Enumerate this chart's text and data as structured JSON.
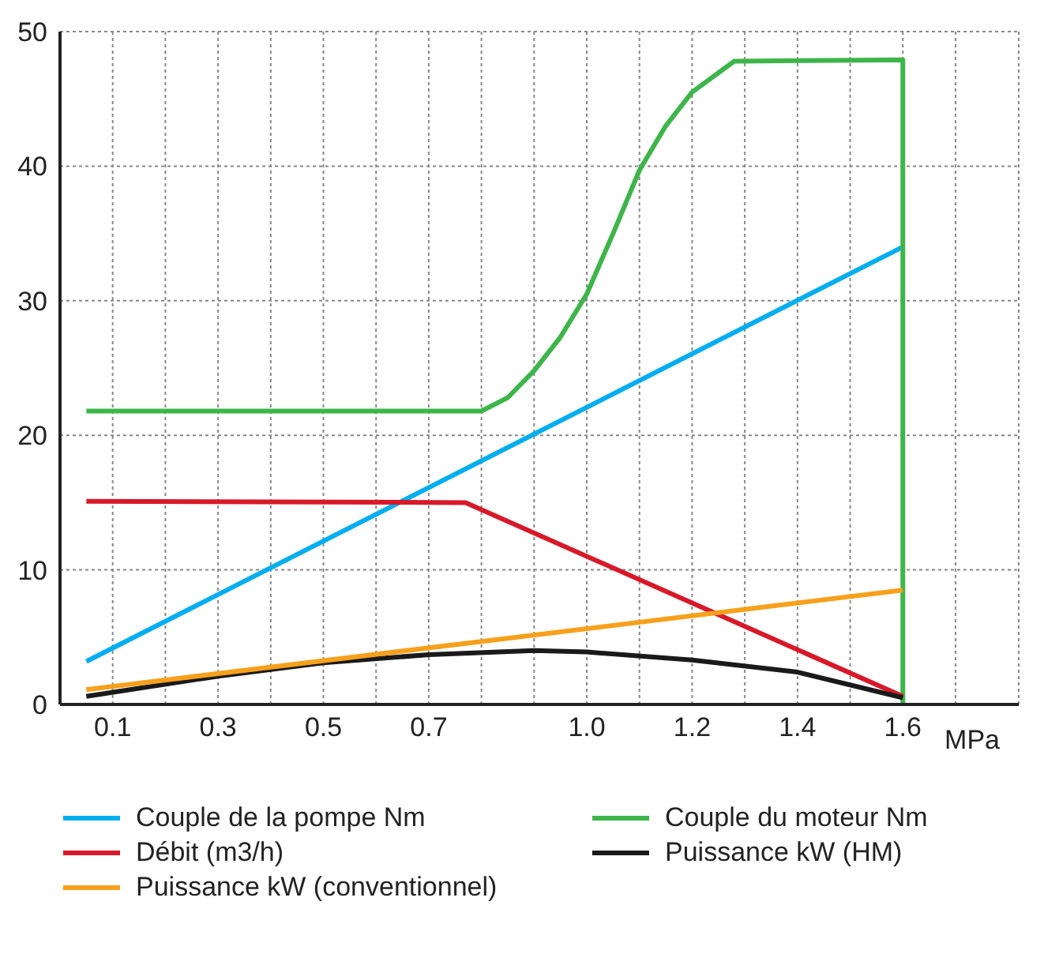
{
  "chart_data": {
    "type": "line",
    "xlabel": "MPa",
    "xlim": [
      0,
      1.82
    ],
    "xticks": [
      {
        "value": 0.1,
        "label": "0.1"
      },
      {
        "value": 0.2,
        "label": null
      },
      {
        "value": 0.3,
        "label": "0.3"
      },
      {
        "value": 0.4,
        "label": null
      },
      {
        "value": 0.5,
        "label": "0.5"
      },
      {
        "value": 0.6,
        "label": null
      },
      {
        "value": 0.7,
        "label": "0.7"
      },
      {
        "value": 0.8,
        "label": null
      },
      {
        "value": 0.9,
        "label": null
      },
      {
        "value": 1.0,
        "label": "1.0"
      },
      {
        "value": 1.1,
        "label": null
      },
      {
        "value": 1.2,
        "label": "1.2"
      },
      {
        "value": 1.3,
        "label": null
      },
      {
        "value": 1.4,
        "label": "1.4"
      },
      {
        "value": 1.5,
        "label": null
      },
      {
        "value": 1.6,
        "label": "1.6"
      },
      {
        "value": 1.7,
        "label": null
      }
    ],
    "ylim": [
      0,
      50
    ],
    "yticks": [
      0,
      10,
      20,
      30,
      40,
      50
    ],
    "grid": true,
    "legend": "bottom",
    "marker": "none",
    "line_style": "solid",
    "series": [
      {
        "name": "Couple de la pompe Nm",
        "color": "#00aeef",
        "x": [
          0.05,
          1.6
        ],
        "values": [
          3.2,
          34
        ]
      },
      {
        "name": "Couple du moteur Nm",
        "color": "#3db54a",
        "x": [
          0.05,
          0.8,
          0.85,
          0.9,
          0.95,
          1.0,
          1.05,
          1.1,
          1.15,
          1.2,
          1.28,
          1.6,
          1.6
        ],
        "values": [
          21.8,
          21.8,
          22.8,
          24.8,
          27.3,
          30.5,
          35,
          39.7,
          43,
          45.5,
          47.8,
          47.9,
          0
        ]
      },
      {
        "name": "Débit (m3/h)",
        "color": "#d7192a",
        "x": [
          0.05,
          0.77,
          1.6
        ],
        "values": [
          15.1,
          15.0,
          0.6
        ]
      },
      {
        "name": "Puissance kW (HM)",
        "color": "#1a1a1a",
        "x": [
          0.05,
          0.3,
          0.5,
          0.7,
          0.9,
          1.0,
          1.2,
          1.4,
          1.6
        ],
        "values": [
          0.6,
          2.1,
          3.1,
          3.7,
          4.0,
          3.9,
          3.3,
          2.4,
          0.5
        ]
      },
      {
        "name": "Puissance kW (conventionnel)",
        "color": "#f7a01c",
        "x": [
          0.05,
          1.6
        ],
        "values": [
          1.1,
          8.5
        ]
      }
    ]
  }
}
